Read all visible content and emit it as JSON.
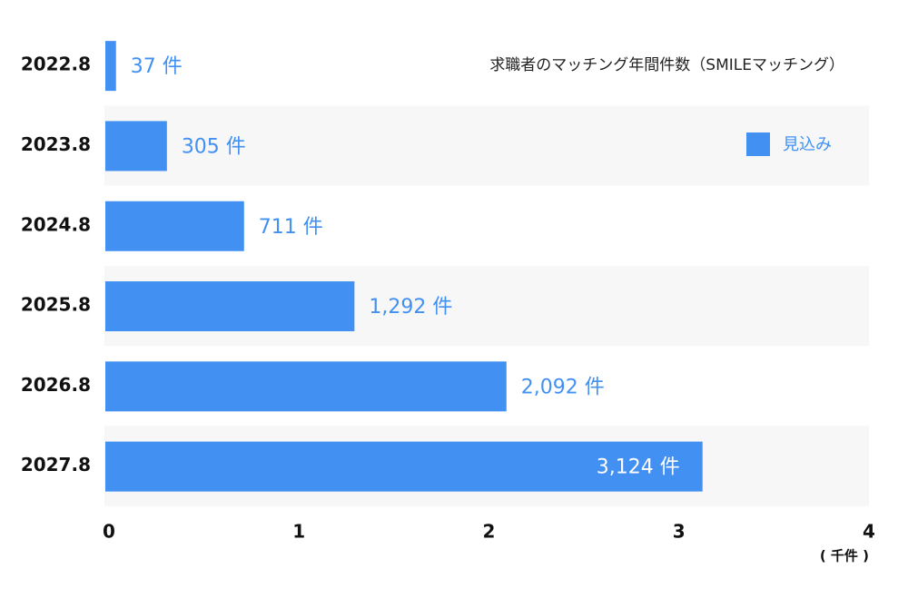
{
  "chart_data": {
    "type": "bar",
    "orientation": "horizontal",
    "title": "求職者のマッチング年間件数（SMILEマッチング）",
    "x_label": "( 千件 )",
    "categories": [
      "2022.8",
      "2023.8",
      "2024.8",
      "2025.8",
      "2026.8",
      "2027.8"
    ],
    "series": [
      {
        "name": "見込み",
        "color": "#4190f2",
        "values": [
          0.037,
          0.305,
          0.711,
          1.292,
          2.092,
          3.124
        ],
        "value_labels": [
          "37 件",
          "305 件",
          "711 件",
          "1,292 件",
          "2,092 件",
          "3,124 件"
        ]
      }
    ],
    "xlim": [
      0,
      4
    ],
    "xticks": [
      0,
      1,
      2,
      3,
      4
    ],
    "legend": "top-right"
  }
}
